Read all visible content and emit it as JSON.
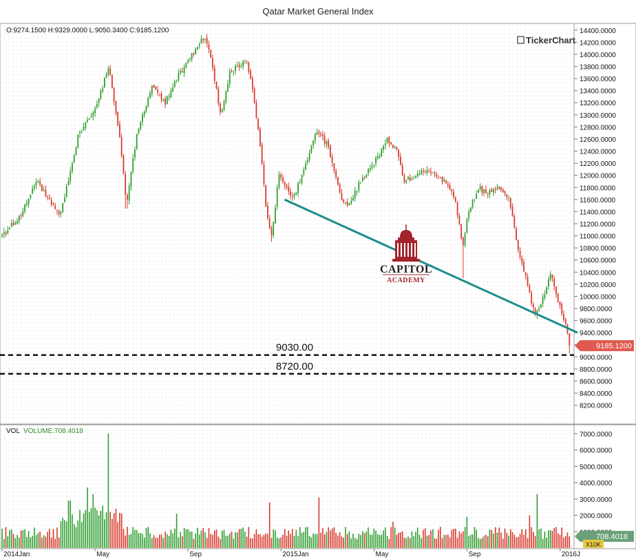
{
  "chart_data": {
    "type": "candlestick",
    "title": "Qatar Market General Index",
    "watermark": "TickerChart",
    "logo": {
      "line1": "CAPITOL",
      "line2": "ACADEMY"
    },
    "ohlc_readout": "O:9274.1500 H:9329.0000 L:9050.3400 C:9185.1200",
    "last_price_label": "9185.1200",
    "last_price": 9185.12,
    "price_axis": {
      "range": [
        7900,
        14500
      ],
      "ticks": [
        8200,
        8400,
        8600,
        8800,
        9000,
        9200,
        9400,
        9600,
        9800,
        10000,
        10200,
        10400,
        10600,
        10800,
        11000,
        11200,
        11400,
        11600,
        11800,
        12000,
        12200,
        12400,
        12600,
        12800,
        13000,
        13200,
        13400,
        13600,
        13800,
        14000,
        14200,
        14400
      ],
      "tick_labels": [
        "8200.0000",
        "8400.0000",
        "8600.0000",
        "8800.0000",
        "9000.0000",
        "9200.0000",
        "9400.0000",
        "9600.0000",
        "9800.0000",
        "10000.0000",
        "10200.0000",
        "10400.0000",
        "10600.0000",
        "10800.0000",
        "11000.0000",
        "11200.0000",
        "11400.0000",
        "11600.0000",
        "11800.0000",
        "12000.0000",
        "12200.0000",
        "12400.0000",
        "12600.0000",
        "12800.0000",
        "13000.0000",
        "13200.0000",
        "13400.0000",
        "13600.0000",
        "13800.0000",
        "14000.0000",
        "14200.0000",
        "14400.0000"
      ]
    },
    "x_axis": {
      "ticks": [
        "2014Jan",
        "May",
        "Sep",
        "2015Jan",
        "May",
        "Sep",
        "2016J"
      ],
      "tick_months": [
        0,
        4,
        8,
        12,
        16,
        20,
        24
      ],
      "range_months": [
        0,
        24.6
      ]
    },
    "price_path": [
      [
        0,
        11000
      ],
      [
        0.8,
        11350
      ],
      [
        1.5,
        11900
      ],
      [
        2.0,
        11600
      ],
      [
        2.5,
        11300
      ],
      [
        3.3,
        12700
      ],
      [
        4.0,
        13100
      ],
      [
        4.6,
        13800
      ],
      [
        5.1,
        12500
      ],
      [
        5.35,
        11500
      ],
      [
        5.8,
        12700
      ],
      [
        6.5,
        13500
      ],
      [
        7.0,
        13200
      ],
      [
        7.5,
        13600
      ],
      [
        8.2,
        14000
      ],
      [
        8.7,
        14300
      ],
      [
        9.0,
        13900
      ],
      [
        9.4,
        13000
      ],
      [
        9.8,
        13700
      ],
      [
        10.5,
        13900
      ],
      [
        10.8,
        13400
      ],
      [
        11.1,
        12500
      ],
      [
        11.4,
        11300
      ],
      [
        11.6,
        11000
      ],
      [
        11.9,
        12000
      ],
      [
        12.2,
        11800
      ],
      [
        12.5,
        11600
      ],
      [
        13.1,
        12200
      ],
      [
        13.5,
        12750
      ],
      [
        14.0,
        12500
      ],
      [
        14.6,
        11600
      ],
      [
        14.9,
        11500
      ],
      [
        15.4,
        11900
      ],
      [
        16.0,
        12200
      ],
      [
        16.6,
        12600
      ],
      [
        17.0,
        12400
      ],
      [
        17.3,
        11900
      ],
      [
        17.8,
        12000
      ],
      [
        18.3,
        12100
      ],
      [
        19.0,
        11900
      ],
      [
        19.5,
        11600
      ],
      [
        19.8,
        10800
      ],
      [
        20.05,
        11400
      ],
      [
        20.5,
        11800
      ],
      [
        20.8,
        11700
      ],
      [
        21.3,
        11800
      ],
      [
        21.8,
        11600
      ],
      [
        22.2,
        10800
      ],
      [
        22.6,
        10200
      ],
      [
        22.9,
        9700
      ],
      [
        23.2,
        9900
      ],
      [
        23.6,
        10400
      ],
      [
        23.95,
        9900
      ],
      [
        24.2,
        9600
      ],
      [
        24.4,
        9185
      ]
    ],
    "spikes": [
      {
        "month": 11.6,
        "low": 10900
      },
      {
        "month": 19.8,
        "low": 10300
      },
      {
        "month": 5.35,
        "low": 11450
      }
    ],
    "trendline": {
      "from": [
        12.15,
        11600
      ],
      "to": [
        24.75,
        9400
      ],
      "color": "#1a8c8c"
    },
    "levels": [
      {
        "price": 9030,
        "label": "9030.00"
      },
      {
        "price": 8720,
        "label": "8720.00"
      }
    ],
    "colors": {
      "up": "#2e9e2e",
      "down": "#d9382b",
      "last_price_bg": "#e05a4f"
    },
    "volume": {
      "label": "VOL",
      "series_label": "VOLUME:708.4018",
      "last_label": "708.4018",
      "last_value": 708.4018,
      "unit_label": "X10K",
      "range": [
        0,
        7500
      ],
      "ticks": [
        1000,
        2000,
        3000,
        4000,
        5000,
        6000,
        7000
      ],
      "tick_labels": [
        "1000.0000",
        "2000.0000",
        "3000.0000",
        "4000.0000",
        "5000.0000",
        "6000.0000",
        "7000.0000"
      ],
      "peaks": [
        {
          "month": 4.6,
          "value": 7000
        },
        {
          "month": 3.7,
          "value": 3700
        },
        {
          "month": 3.9,
          "value": 3300
        },
        {
          "month": 2.9,
          "value": 2900
        },
        {
          "month": 4.3,
          "value": 2600
        },
        {
          "month": 7.5,
          "value": 2100
        },
        {
          "month": 11.5,
          "value": 2800
        },
        {
          "month": 13.6,
          "value": 3100
        },
        {
          "month": 20.0,
          "value": 1900
        },
        {
          "month": 23.0,
          "value": 3300
        },
        {
          "month": 22.7,
          "value": 2000
        },
        {
          "month": 16.8,
          "value": 1600
        }
      ]
    }
  }
}
